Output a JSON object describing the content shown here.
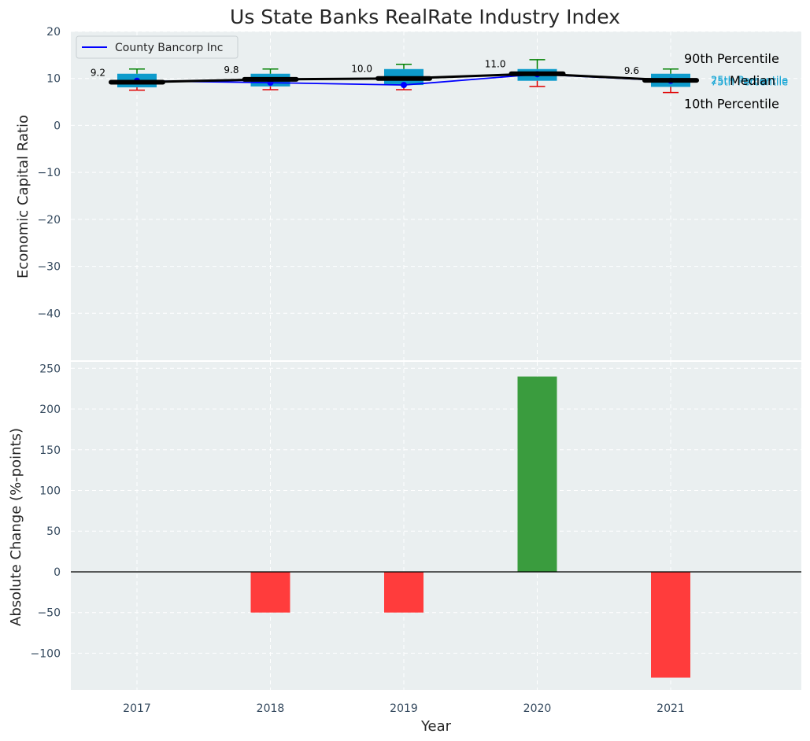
{
  "chart_data": [
    {
      "type": "box",
      "title": "Us State Banks RealRate Industry Index",
      "ylabel": "Economic Capital Ratio",
      "ylim": [
        -50,
        20
      ],
      "yticks": [
        20,
        10,
        0,
        -10,
        -20,
        -30,
        -40
      ],
      "ytick_labels": [
        "20",
        "10",
        "0",
        "−10",
        "−20",
        "−30",
        "−40"
      ],
      "categories": [
        "2017",
        "2018",
        "2019",
        "2020",
        "2021"
      ],
      "grid": true,
      "legend": {
        "position": "top-left",
        "entries": [
          "County Bancorp Inc"
        ]
      },
      "boxes": [
        {
          "year": "2017",
          "p10": 7.5,
          "p25": 8.1,
          "median": 9.2,
          "p75": 11.0,
          "p90": 12.0
        },
        {
          "year": "2018",
          "p10": 7.6,
          "p25": 8.3,
          "median": 9.8,
          "p75": 11.0,
          "p90": 12.0
        },
        {
          "year": "2019",
          "p10": 7.6,
          "p25": 8.6,
          "median": 10.0,
          "p75": 12.0,
          "p90": 13.0
        },
        {
          "year": "2020",
          "p10": 8.3,
          "p25": 9.5,
          "median": 11.0,
          "p75": 12.0,
          "p90": 14.0
        },
        {
          "year": "2021",
          "p10": 7.0,
          "p25": 8.2,
          "median": 9.6,
          "p75": 11.0,
          "p90": 12.0
        }
      ],
      "median_labels": [
        "9.2",
        "9.8",
        "10.0",
        "11.0",
        "9.6"
      ],
      "series": [
        {
          "name": "County Bancorp Inc",
          "values": [
            9.5,
            9.1,
            8.6,
            10.9,
            9.5
          ],
          "color": "#0000ff"
        }
      ],
      "percentile_labels": {
        "p90": "90th Percentile",
        "p75": "75th Percentile",
        "median": "Median",
        "p25": "25th Percentile",
        "p10": "10th Percentile"
      },
      "colors": {
        "box": "#0e9bcc",
        "median_line": "#000000",
        "whisker_top": "#008000",
        "whisker_bottom": "#e00000",
        "background": "#eaeff0"
      }
    },
    {
      "type": "bar",
      "ylabel": "Absolute Change (%-points)",
      "xlabel": "Year",
      "ylim": [
        -145,
        258
      ],
      "yticks": [
        250,
        200,
        150,
        100,
        50,
        0,
        -50,
        -100
      ],
      "ytick_labels": [
        "250",
        "200",
        "150",
        "100",
        "50",
        "0",
        "−50",
        "−100"
      ],
      "categories": [
        "2017",
        "2018",
        "2019",
        "2020",
        "2021"
      ],
      "values": [
        0,
        -50,
        -50,
        240,
        -130
      ],
      "grid": true,
      "colors": {
        "positive": "#3a9c3e",
        "negative": "#ff3c3c"
      }
    }
  ]
}
